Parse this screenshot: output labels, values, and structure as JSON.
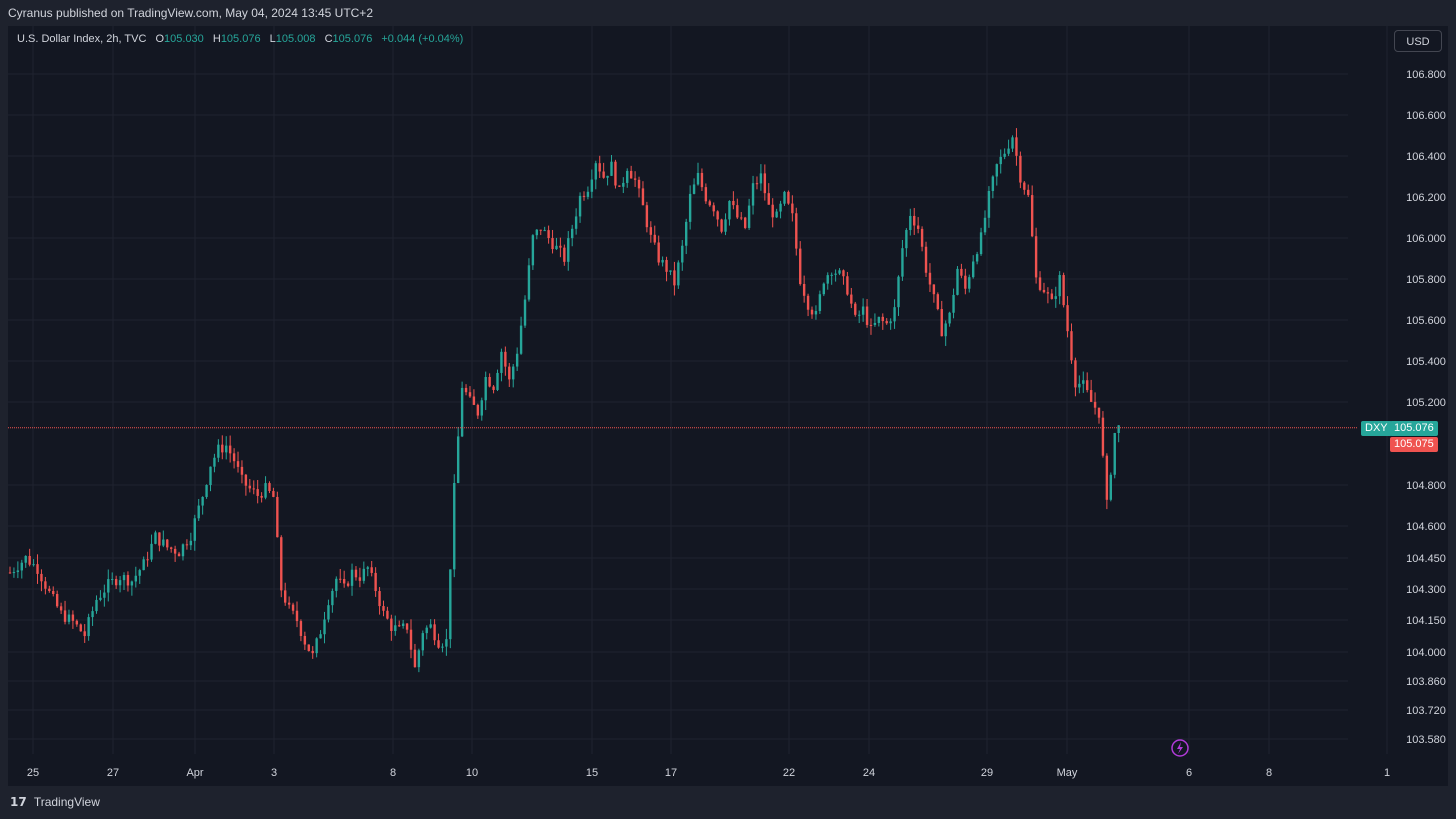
{
  "header": {
    "published_text": "Cyranus published on TradingView.com, May 04, 2024 13:45 UTC+2"
  },
  "legend": {
    "symbol": "U.S. Dollar Index, 2h, TVC",
    "o_label": "O",
    "o_value": "105.030",
    "h_label": "H",
    "h_value": "105.076",
    "l_label": "L",
    "l_value": "105.008",
    "c_label": "C",
    "c_value": "105.076",
    "change": "+0.044 (+0.04%)"
  },
  "currency_button": "USD",
  "footer": {
    "brand": "TradingView"
  },
  "colors": {
    "background": "#131722",
    "grid": "#1f2330",
    "up": "#26a69a",
    "down": "#ef5350",
    "text": "#d1d4dc",
    "price_line": "#ef5350"
  },
  "chart_data": {
    "type": "candlestick",
    "title": "",
    "symbol_tag": "DXY",
    "last_price_label": "105.076",
    "prev_close_label": "105.075",
    "last_price": 105.076,
    "prev_close": 105.075,
    "x_ticks": [
      "25",
      "27",
      "Apr",
      "3",
      "8",
      "10",
      "15",
      "17",
      "22",
      "24",
      "29",
      "May",
      "6",
      "8",
      "1"
    ],
    "y_ticks": [
      "106.800",
      "106.600",
      "106.400",
      "106.200",
      "106.000",
      "105.800",
      "105.600",
      "105.400",
      "105.200",
      "104.800",
      "104.600",
      "104.450",
      "104.300",
      "104.150",
      "104.000",
      "103.860",
      "103.720",
      "103.580"
    ],
    "y_tick_values": [
      106.8,
      106.6,
      106.4,
      106.2,
      106.0,
      105.8,
      105.6,
      105.4,
      105.2,
      104.8,
      104.6,
      104.45,
      104.3,
      104.15,
      104.0,
      103.86,
      103.72,
      103.58
    ],
    "grid": true,
    "close_path": [
      [
        0,
        104.38
      ],
      [
        8,
        104.45
      ],
      [
        14,
        104.4
      ],
      [
        20,
        104.28
      ],
      [
        26,
        104.18
      ],
      [
        32,
        104.14
      ],
      [
        38,
        104.08
      ],
      [
        44,
        104.25
      ],
      [
        50,
        104.32
      ],
      [
        56,
        104.36
      ],
      [
        62,
        104.34
      ],
      [
        68,
        104.42
      ],
      [
        74,
        104.55
      ],
      [
        80,
        104.5
      ],
      [
        86,
        104.48
      ],
      [
        92,
        104.56
      ],
      [
        98,
        104.75
      ],
      [
        102,
        104.9
      ],
      [
        106,
        104.97
      ],
      [
        110,
        104.99
      ],
      [
        114,
        104.92
      ],
      [
        118,
        104.82
      ],
      [
        122,
        104.78
      ],
      [
        126,
        104.75
      ],
      [
        130,
        104.78
      ],
      [
        134,
        104.74
      ],
      [
        138,
        104.3
      ],
      [
        142,
        104.2
      ],
      [
        146,
        104.15
      ],
      [
        150,
        104.05
      ],
      [
        154,
        103.98
      ],
      [
        158,
        104.1
      ],
      [
        162,
        104.25
      ],
      [
        166,
        104.35
      ],
      [
        170,
        104.3
      ],
      [
        174,
        104.38
      ],
      [
        178,
        104.36
      ],
      [
        182,
        104.4
      ],
      [
        186,
        104.3
      ],
      [
        190,
        104.18
      ],
      [
        194,
        104.12
      ],
      [
        198,
        104.1
      ],
      [
        202,
        104.12
      ],
      [
        206,
        103.92
      ],
      [
        210,
        104.1
      ],
      [
        214,
        104.12
      ],
      [
        218,
        104.05
      ],
      [
        222,
        104.05
      ],
      [
        226,
        104.78
      ],
      [
        230,
        105.28
      ],
      [
        234,
        105.2
      ],
      [
        238,
        105.15
      ],
      [
        242,
        105.32
      ],
      [
        246,
        105.28
      ],
      [
        250,
        105.45
      ],
      [
        254,
        105.3
      ],
      [
        258,
        105.45
      ],
      [
        262,
        105.7
      ],
      [
        266,
        106.0
      ],
      [
        270,
        106.05
      ],
      [
        274,
        106.0
      ],
      [
        278,
        105.95
      ],
      [
        282,
        105.9
      ],
      [
        286,
        106.05
      ],
      [
        290,
        106.2
      ],
      [
        294,
        106.25
      ],
      [
        298,
        106.38
      ],
      [
        302,
        106.3
      ],
      [
        306,
        106.35
      ],
      [
        310,
        106.22
      ],
      [
        314,
        106.35
      ],
      [
        318,
        106.28
      ],
      [
        322,
        106.15
      ],
      [
        326,
        106.0
      ],
      [
        330,
        105.9
      ],
      [
        334,
        105.85
      ],
      [
        338,
        105.78
      ],
      [
        342,
        105.95
      ],
      [
        346,
        106.2
      ],
      [
        350,
        106.3
      ],
      [
        354,
        106.2
      ],
      [
        358,
        106.15
      ],
      [
        362,
        106.05
      ],
      [
        366,
        106.18
      ],
      [
        370,
        106.1
      ],
      [
        374,
        106.05
      ],
      [
        378,
        106.25
      ],
      [
        382,
        106.3
      ],
      [
        386,
        106.15
      ],
      [
        390,
        106.1
      ],
      [
        394,
        106.2
      ],
      [
        398,
        106.1
      ],
      [
        402,
        105.8
      ],
      [
        406,
        105.68
      ],
      [
        410,
        105.62
      ],
      [
        414,
        105.8
      ],
      [
        418,
        105.85
      ],
      [
        422,
        105.82
      ],
      [
        426,
        105.75
      ],
      [
        430,
        105.6
      ],
      [
        434,
        105.65
      ],
      [
        438,
        105.55
      ],
      [
        442,
        105.6
      ],
      [
        446,
        105.58
      ],
      [
        450,
        105.65
      ],
      [
        454,
        105.95
      ],
      [
        458,
        106.12
      ],
      [
        462,
        106.05
      ],
      [
        466,
        105.85
      ],
      [
        470,
        105.7
      ],
      [
        474,
        105.55
      ],
      [
        478,
        105.62
      ],
      [
        482,
        105.85
      ],
      [
        486,
        105.75
      ],
      [
        490,
        105.9
      ],
      [
        494,
        106.0
      ],
      [
        498,
        106.2
      ],
      [
        502,
        106.35
      ],
      [
        506,
        106.42
      ],
      [
        510,
        106.5
      ],
      [
        514,
        106.3
      ],
      [
        518,
        106.2
      ],
      [
        522,
        105.8
      ],
      [
        526,
        105.75
      ],
      [
        530,
        105.68
      ],
      [
        534,
        105.8
      ],
      [
        538,
        105.55
      ],
      [
        542,
        105.3
      ],
      [
        546,
        105.28
      ],
      [
        550,
        105.2
      ],
      [
        554,
        105.15
      ],
      [
        558,
        104.7
      ],
      [
        562,
        105.05
      ],
      [
        564,
        105.076
      ]
    ],
    "x_range": [
      0,
      700
    ],
    "y_range": [
      103.5,
      106.9
    ]
  }
}
